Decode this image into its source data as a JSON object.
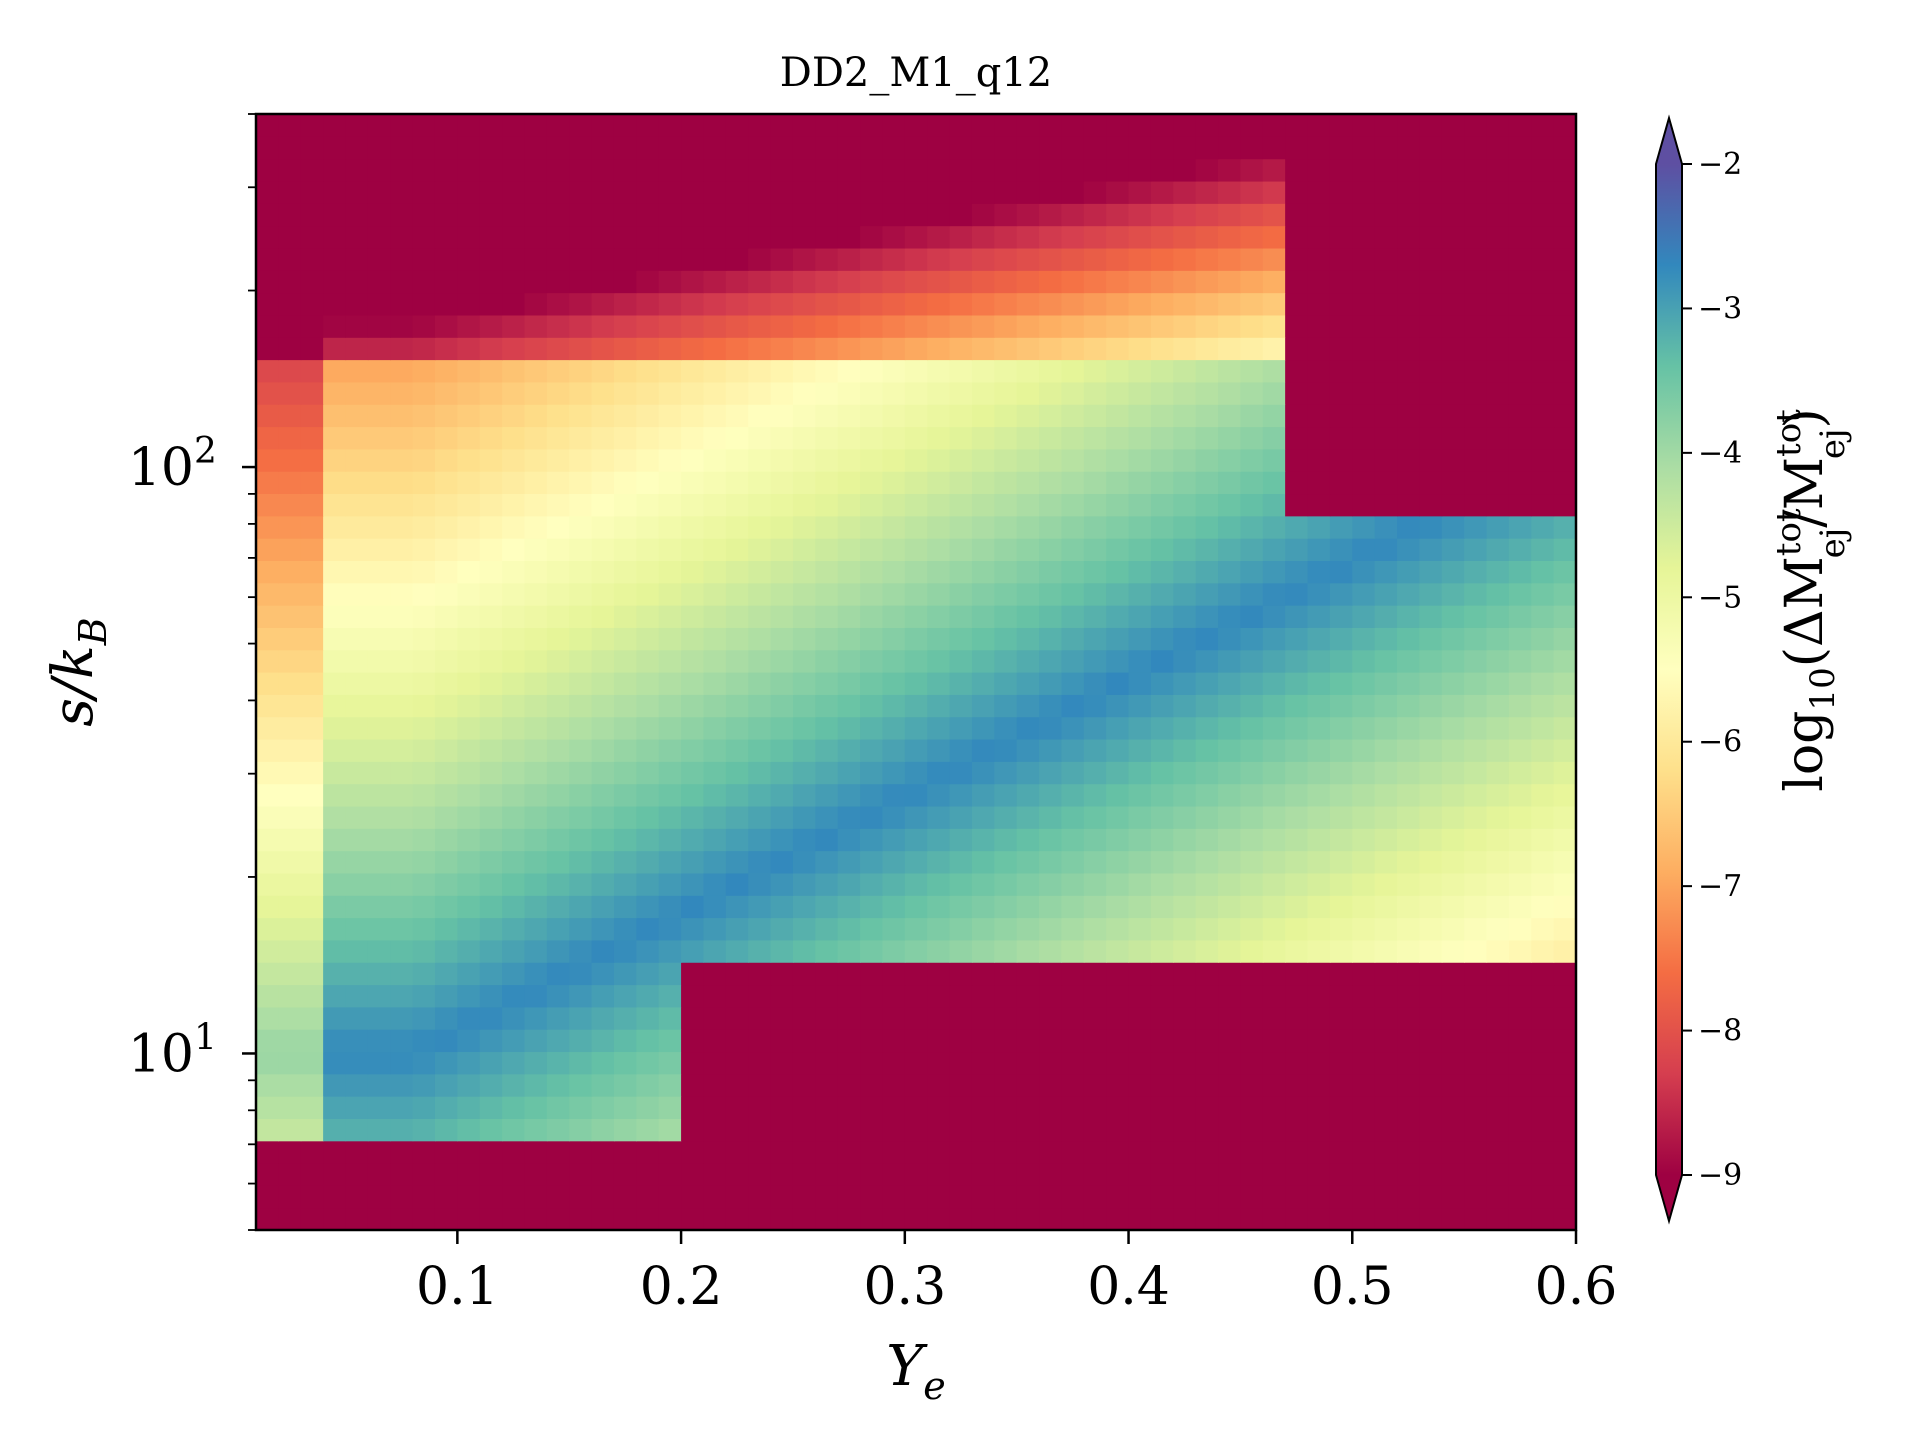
{
  "chart_data": {
    "type": "heatmap",
    "title": "DD2_M1_q12",
    "xlabel": "Y_e",
    "ylabel": "s/k_B",
    "colorbar_label": "log10(ΔM_ej^tot / M_ej^tot)",
    "x_range": [
      0.01,
      0.6
    ],
    "y_range": [
      5,
      400
    ],
    "y_scale": "log",
    "x_ticks": [
      "0.1",
      "0.2",
      "0.3",
      "0.4",
      "0.5",
      "0.6"
    ],
    "x_tick_values": [
      0.1,
      0.2,
      0.3,
      0.4,
      0.5,
      0.6
    ],
    "y_tick_values": [
      10,
      100
    ],
    "y_tick_labels": [
      {
        "base": "10",
        "exp": "1"
      },
      {
        "base": "10",
        "exp": "2"
      }
    ],
    "colorbar_range": [
      -9,
      -2
    ],
    "colorbar_ticks": [
      "−2",
      "−3",
      "−4",
      "−5",
      "−6",
      "−7",
      "−8",
      "−9"
    ],
    "colorbar_tick_values": [
      -2,
      -3,
      -4,
      -5,
      -6,
      -7,
      -8,
      -9
    ],
    "colormap": "Spectral",
    "colorbar_extend": "both",
    "grid": false,
    "underflow_color": "#9e0142",
    "overflow_color": "#5e4fa2",
    "colormap_stops": [
      "#9e0142",
      "#d53e4f",
      "#f46d43",
      "#fdae61",
      "#fee08b",
      "#ffffbf",
      "#e6f598",
      "#abdda4",
      "#66c2a5",
      "#3288bd",
      "#5e4fa2"
    ]
  }
}
